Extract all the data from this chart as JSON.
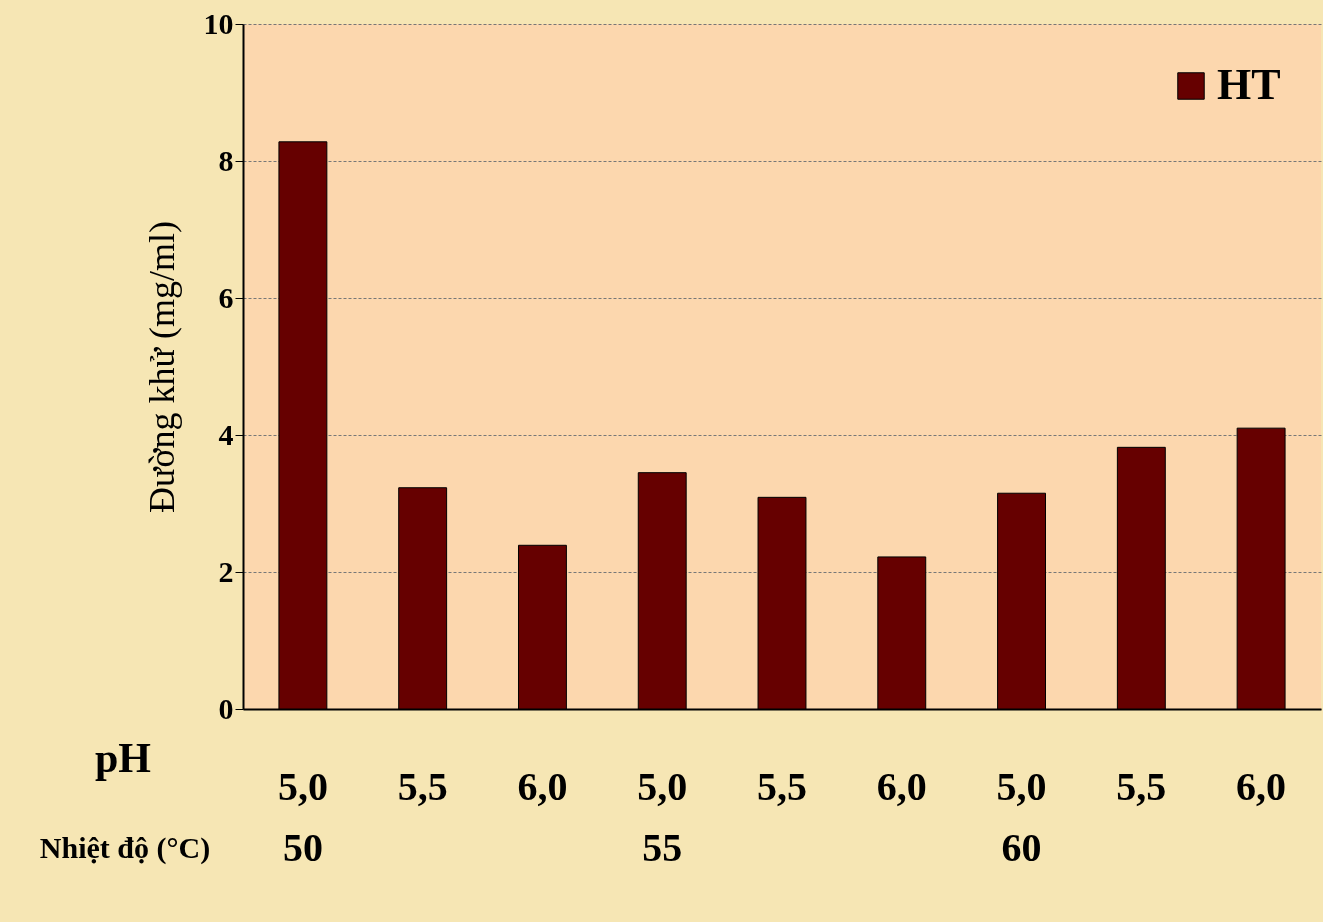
{
  "chart_data": {
    "type": "bar",
    "ylabel": "Đường khử  (mg/ml)",
    "categories": [
      "5,0",
      "5,5",
      "6,0",
      "5,0",
      "5,5",
      "6,0",
      "5,0",
      "5,5",
      "6,0"
    ],
    "series": [
      {
        "name": "HT",
        "color": "#660000",
        "values": [
          8.28,
          3.23,
          2.39,
          3.45,
          3.09,
          2.22,
          3.15,
          3.82,
          4.1
        ]
      }
    ],
    "ylim": [
      0,
      10
    ],
    "yticks": [
      0,
      2,
      4,
      6,
      8,
      10
    ],
    "grid": "y",
    "legend": "top right",
    "annotations": [
      "pH",
      "Nhiệt độ (°C)",
      "50",
      "55",
      "60"
    ]
  }
}
